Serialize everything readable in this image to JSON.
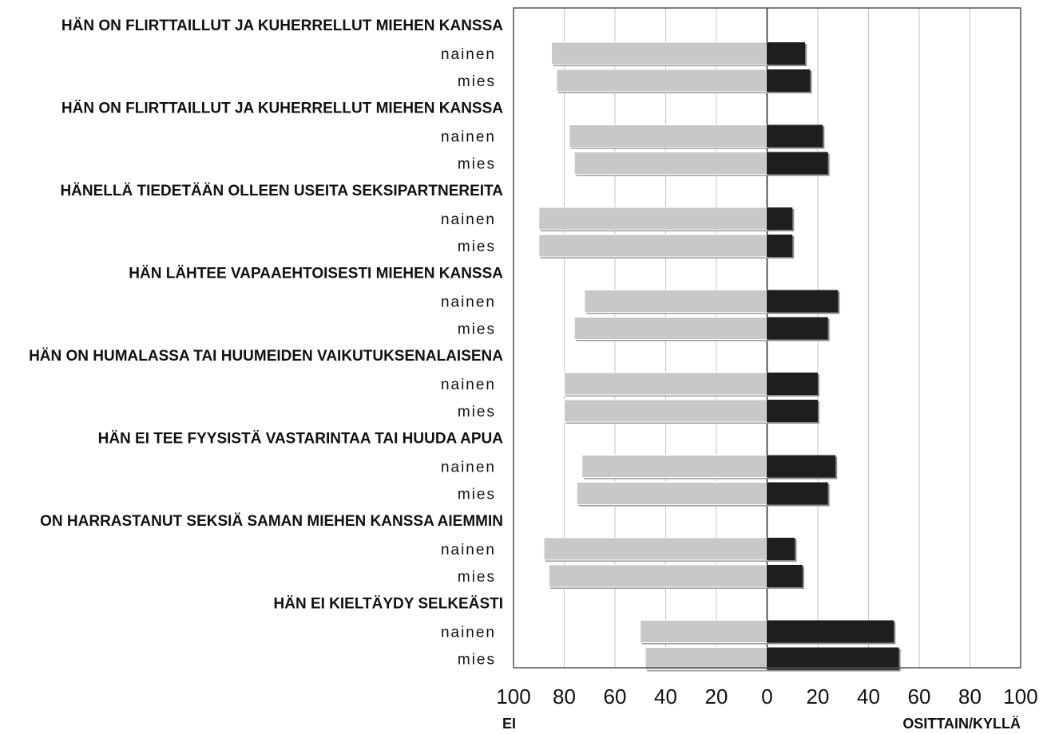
{
  "chart_data": {
    "type": "bar",
    "orientation": "horizontal-diverging",
    "xlabel_left": "EI",
    "xlabel_right": "OSITTAIN/KYLLÄ",
    "x_ticks": [
      "100",
      "80",
      "60",
      "40",
      "20",
      "0",
      "20",
      "40",
      "60",
      "80",
      "100"
    ],
    "xlim": [
      -100,
      100
    ],
    "grid": "vertical",
    "colors": {
      "ei": "#c8c8c8",
      "kylla": "#1e1e1e",
      "grid": "#c4c4c4",
      "frame": "#555555"
    },
    "groups": [
      {
        "label": "HÄN ON FLIRTTAILLUT JA KUHERRELLUT MIEHEN KANSSA",
        "rows": [
          {
            "label": "nainen",
            "ei": 85,
            "kylla": 15
          },
          {
            "label": "mies",
            "ei": 83,
            "kylla": 17
          }
        ]
      },
      {
        "label": "HÄN ON FLIRTTAILLUT JA KUHERRELLUT MIEHEN KANSSA",
        "rows": [
          {
            "label": "nainen",
            "ei": 78,
            "kylla": 22
          },
          {
            "label": "mies",
            "ei": 76,
            "kylla": 24
          }
        ]
      },
      {
        "label": "HÄNELLÄ TIEDETÄÄN OLLEEN USEITA SEKSIPARTNEREITA",
        "rows": [
          {
            "label": "nainen",
            "ei": 90,
            "kylla": 10
          },
          {
            "label": "mies",
            "ei": 90,
            "kylla": 10
          }
        ]
      },
      {
        "label": "HÄN LÄHTEE VAPAAEHTOISESTI MIEHEN KANSSA",
        "rows": [
          {
            "label": "nainen",
            "ei": 72,
            "kylla": 28
          },
          {
            "label": "mies",
            "ei": 76,
            "kylla": 24
          }
        ]
      },
      {
        "label": "HÄN ON HUMALASSA TAI HUUMEIDEN VAIKUTUKSENALAISENA",
        "rows": [
          {
            "label": "nainen",
            "ei": 80,
            "kylla": 20
          },
          {
            "label": "mies",
            "ei": 80,
            "kylla": 20
          }
        ]
      },
      {
        "label": "HÄN EI TEE FYYSISTÄ VASTARINTAA TAI HUUDA APUA",
        "rows": [
          {
            "label": "nainen",
            "ei": 73,
            "kylla": 27
          },
          {
            "label": "mies",
            "ei": 75,
            "kylla": 24
          }
        ]
      },
      {
        "label": "ON HARRASTANUT SEKSIÄ SAMAN MIEHEN KANSSA AIEMMIN",
        "rows": [
          {
            "label": "nainen",
            "ei": 88,
            "kylla": 11
          },
          {
            "label": "mies",
            "ei": 86,
            "kylla": 14
          }
        ]
      },
      {
        "label": "HÄN EI KIELTÄYDY SELKEÄSTI",
        "rows": [
          {
            "label": "nainen",
            "ei": 50,
            "kylla": 50
          },
          {
            "label": "mies",
            "ei": 48,
            "kylla": 52
          }
        ]
      }
    ]
  }
}
